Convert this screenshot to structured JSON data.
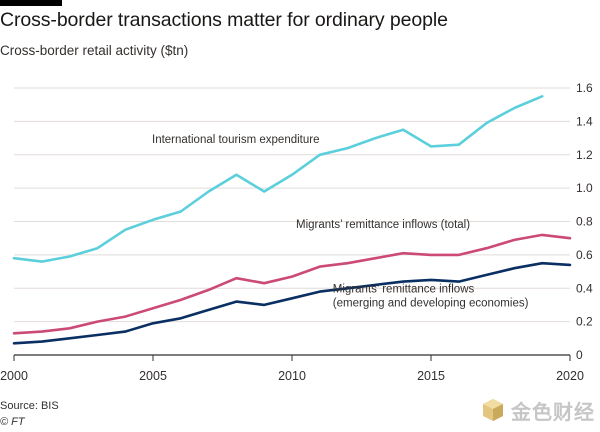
{
  "header": {
    "title": "Cross-border transactions matter for ordinary people",
    "subtitle": "Cross-border retail activity ($tn)"
  },
  "footer": {
    "source": "Source: BIS",
    "credit": "© FT"
  },
  "watermark": {
    "text": "金色财经",
    "logo_icon": "golden-cube-icon"
  },
  "colors": {
    "tourism": "#5ccfdc",
    "remittance_total": "#cc4a77",
    "remittance_emerging": "#0a2f63",
    "grid": "#e2dcd8",
    "axis": "#33302e"
  },
  "chart_data": {
    "type": "line",
    "title": "Cross-border transactions matter for ordinary people",
    "subtitle": "Cross-border retail activity ($tn)",
    "xlabel": "",
    "ylabel": "",
    "xlim": [
      2000,
      2020
    ],
    "ylim": [
      0,
      1.6
    ],
    "grid": true,
    "y_axis_side": "right",
    "x_ticks": [
      2000,
      2005,
      2010,
      2015,
      2020
    ],
    "y_ticks": [
      0,
      0.2,
      0.4,
      0.6,
      0.8,
      1.0,
      1.2,
      1.4,
      1.6
    ],
    "y_tick_labels": [
      "0",
      "0.2",
      "0.4",
      "0.6",
      "0.8",
      "1.0",
      "1.2",
      "1.4",
      "1.6"
    ],
    "x": [
      2000,
      2001,
      2002,
      2003,
      2004,
      2005,
      2006,
      2007,
      2008,
      2009,
      2010,
      2011,
      2012,
      2013,
      2014,
      2015,
      2016,
      2017,
      2018,
      2019,
      2020
    ],
    "series": [
      {
        "name": "International tourism expenditure",
        "label_lines": [
          "International tourism expenditure"
        ],
        "color": "#5ccfdc",
        "values": [
          0.58,
          0.56,
          0.59,
          0.64,
          0.75,
          0.81,
          0.86,
          0.98,
          1.08,
          0.98,
          1.08,
          1.2,
          1.24,
          1.3,
          1.35,
          1.25,
          1.26,
          1.39,
          1.48,
          1.55,
          null
        ]
      },
      {
        "name": "Migrants' remittance inflows (total)",
        "label_lines": [
          "Migrants’ remittance inflows (total)"
        ],
        "color": "#cc4a77",
        "values": [
          0.13,
          0.14,
          0.16,
          0.2,
          0.23,
          0.28,
          0.33,
          0.39,
          0.46,
          0.43,
          0.47,
          0.53,
          0.55,
          0.58,
          0.61,
          0.6,
          0.6,
          0.64,
          0.69,
          0.72,
          0.7
        ]
      },
      {
        "name": "Migrants' remittance inflows (emerging and developing economies)",
        "label_lines": [
          "Migrants’ remittance inflows",
          "(emerging and developing economies)"
        ],
        "color": "#0a2f63",
        "values": [
          0.07,
          0.08,
          0.1,
          0.12,
          0.14,
          0.19,
          0.22,
          0.27,
          0.32,
          0.3,
          0.34,
          0.38,
          0.4,
          0.42,
          0.44,
          0.45,
          0.44,
          0.48,
          0.52,
          0.55,
          0.54
        ]
      }
    ]
  }
}
